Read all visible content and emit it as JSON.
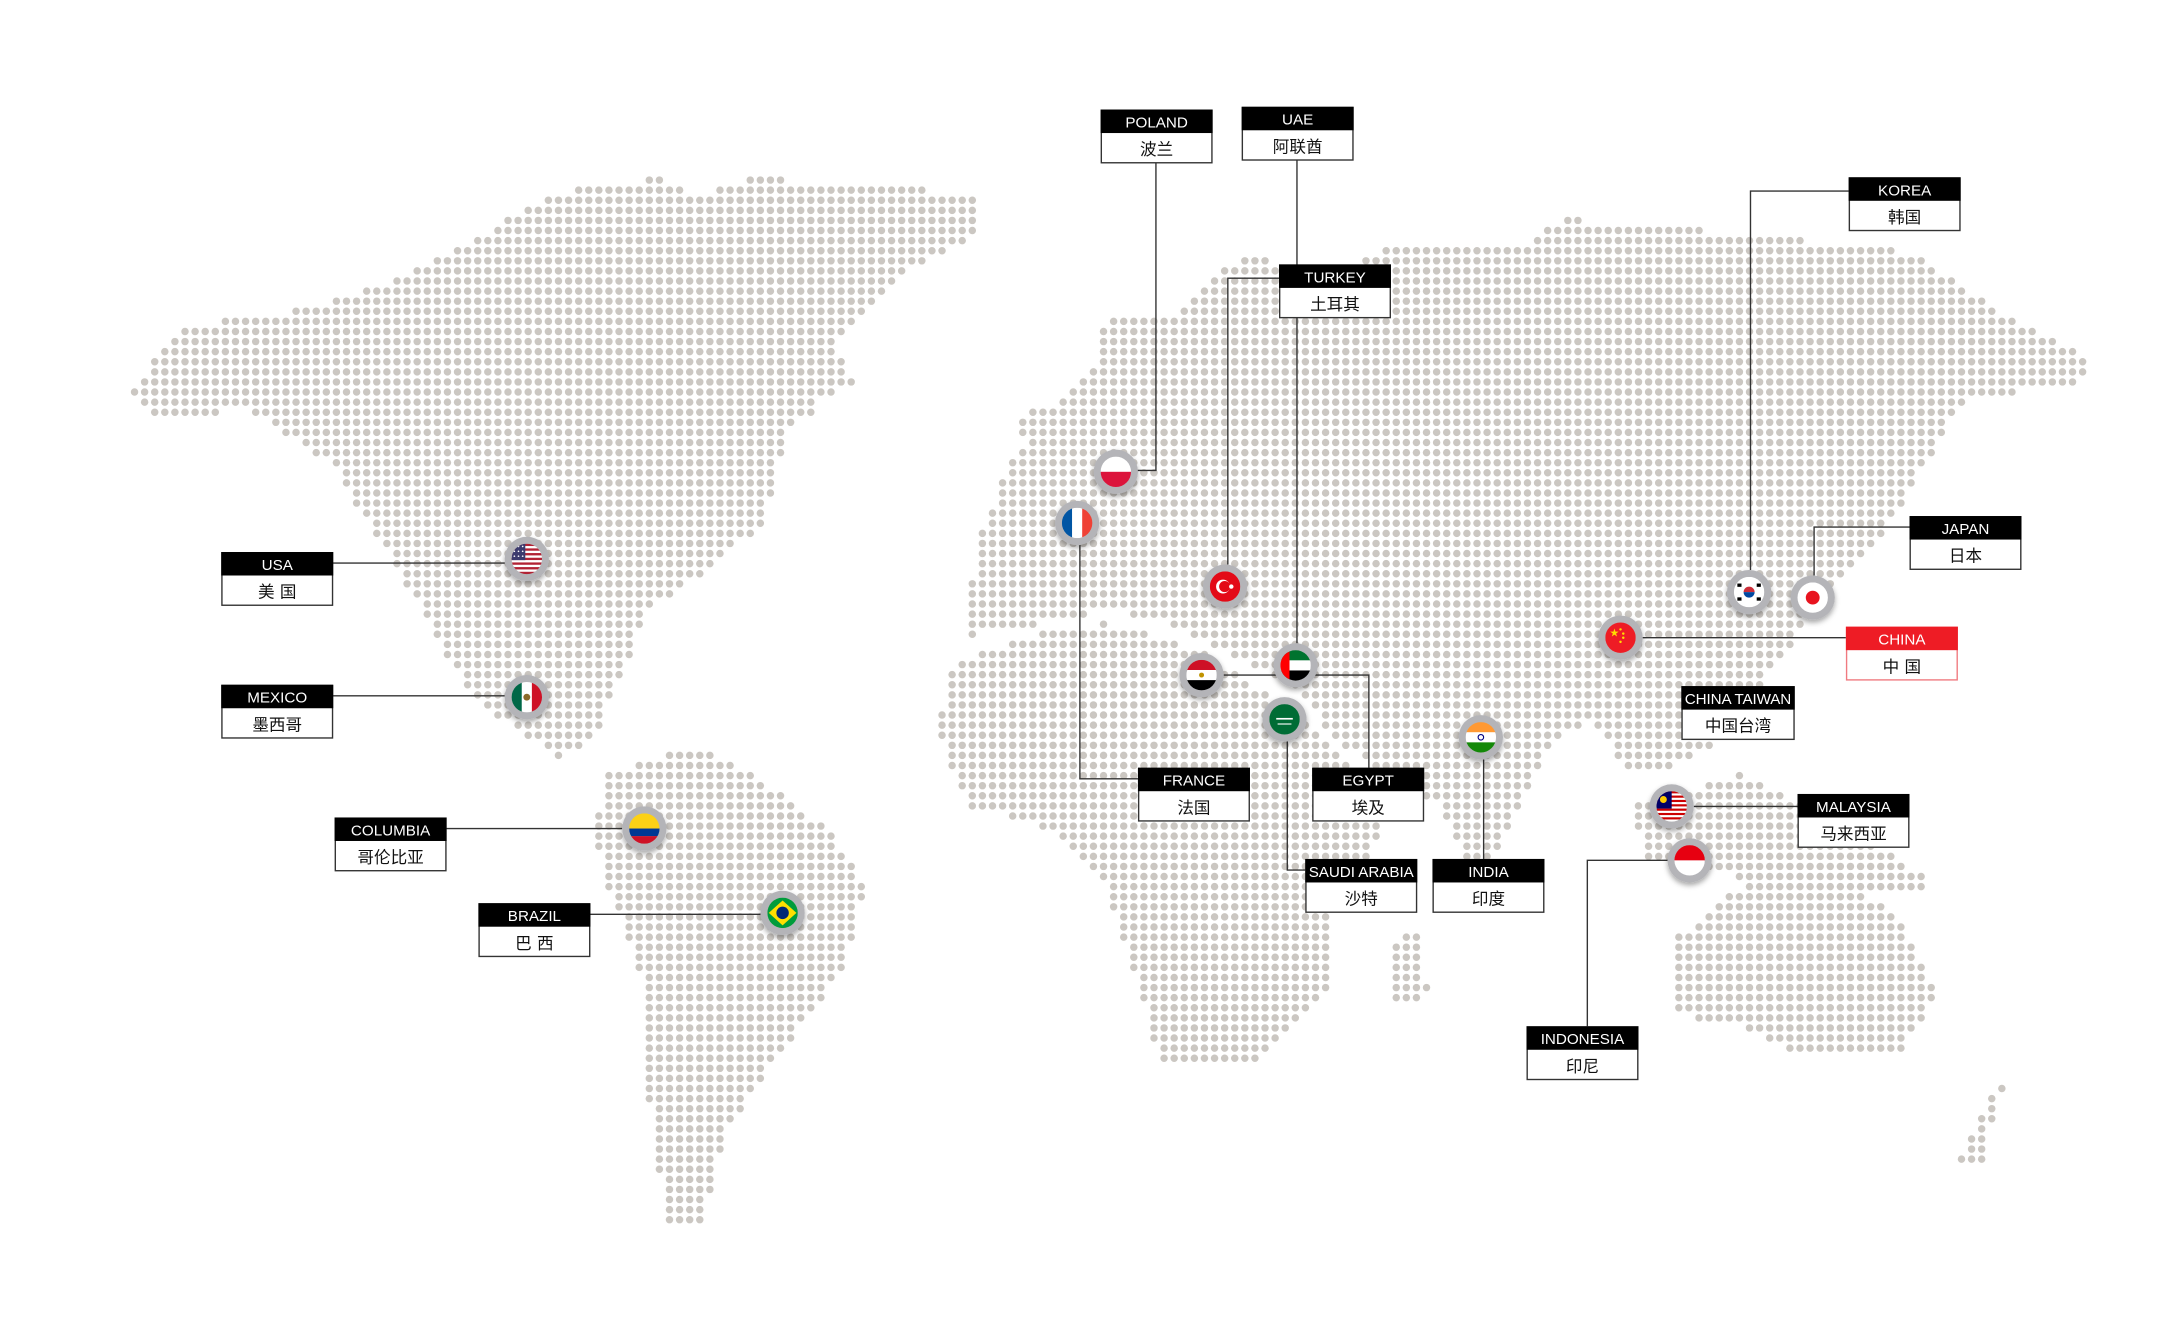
{
  "colors": {
    "dot": "#cbc7c2",
    "label_header": "#000000",
    "highlight": "#ee1c25",
    "marker_ring": "#b4b4b8",
    "connector": "#333333"
  },
  "locations": [
    {
      "id": "poland",
      "en": "POLAND",
      "zh": "波兰",
      "flag": "poland-flag-icon"
    },
    {
      "id": "uae",
      "en": "UAE",
      "zh": "阿联酋",
      "flag": "uae-flag-icon"
    },
    {
      "id": "turkey",
      "en": "TURKEY",
      "zh": "土耳其",
      "flag": "turkey-flag-icon"
    },
    {
      "id": "korea",
      "en": "KOREA",
      "zh": "韩国",
      "flag": "korea-flag-icon"
    },
    {
      "id": "japan",
      "en": "JAPAN",
      "zh": "日本",
      "flag": "japan-flag-icon"
    },
    {
      "id": "china",
      "en": "CHINA",
      "zh": "中 国",
      "flag": "china-flag-icon",
      "highlight": true
    },
    {
      "id": "china-taiwan",
      "en": "CHINA TAIWAN",
      "zh": "中国台湾"
    },
    {
      "id": "malaysia",
      "en": "MALAYSIA",
      "zh": "马来西亚",
      "flag": "malaysia-flag-icon"
    },
    {
      "id": "indonesia",
      "en": "INDONESIA",
      "zh": "印尼",
      "flag": "indonesia-flag-icon"
    },
    {
      "id": "india",
      "en": "INDIA",
      "zh": "印度",
      "flag": "india-flag-icon"
    },
    {
      "id": "saudi-arabia",
      "en": "SAUDI ARABIA",
      "zh": "沙特",
      "flag": "saudi-arabia-flag-icon"
    },
    {
      "id": "egypt",
      "en": "EGYPT",
      "zh": "埃及",
      "flag": "egypt-flag-icon"
    },
    {
      "id": "france",
      "en": "FRANCE",
      "zh": "法国",
      "flag": "france-flag-icon"
    },
    {
      "id": "usa",
      "en": "USA",
      "zh": "美 国",
      "flag": "usa-flag-icon"
    },
    {
      "id": "mexico",
      "en": "MEXICO",
      "zh": "墨西哥",
      "flag": "mexico-flag-icon"
    },
    {
      "id": "columbia",
      "en": "COLUMBIA",
      "zh": "哥伦比亚",
      "flag": "colombia-flag-icon"
    },
    {
      "id": "brazil",
      "en": "BRAZIL",
      "zh": "巴 西",
      "flag": "brazil-flag-icon"
    }
  ]
}
